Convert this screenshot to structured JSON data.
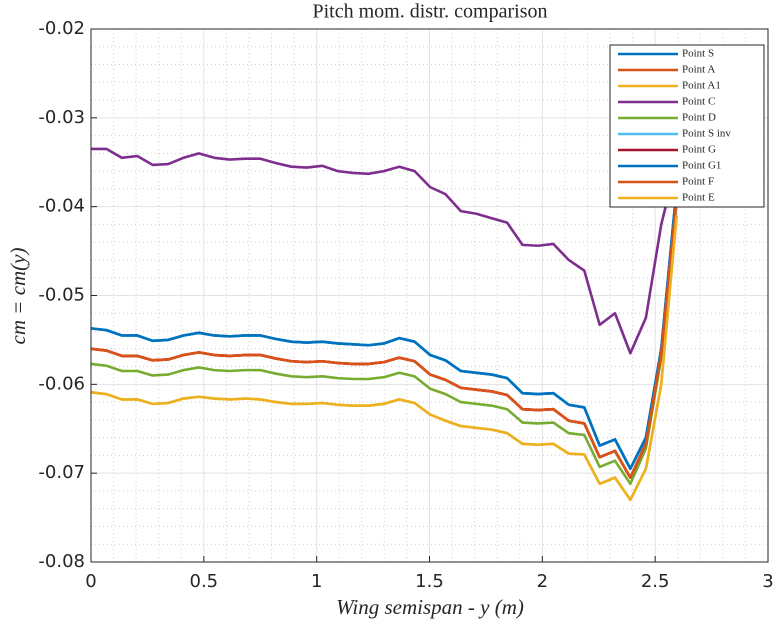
{
  "chart_data": {
    "type": "line",
    "title": "Pitch mom. distr. comparison",
    "xlabel": "Wing semispan - y (m)",
    "ylabel": "cm = cm(y)",
    "x": [
      0,
      0.068,
      0.137,
      0.205,
      0.273,
      0.342,
      0.41,
      0.478,
      0.546,
      0.615,
      0.683,
      0.751,
      0.82,
      0.888,
      0.956,
      1.025,
      1.093,
      1.161,
      1.229,
      1.298,
      1.366,
      1.434,
      1.503,
      1.571,
      1.639,
      1.708,
      1.776,
      1.844,
      1.912,
      1.981,
      2.049,
      2.117,
      2.186,
      2.254,
      2.322,
      2.39,
      2.459,
      2.527,
      2.595
    ],
    "series": [
      {
        "name": "Point S",
        "color": "#0072BD",
        "values": [
          -0.0537,
          -0.0539,
          -0.0545,
          -0.0545,
          -0.0551,
          -0.055,
          -0.0545,
          -0.0542,
          -0.0545,
          -0.0546,
          -0.0545,
          -0.0545,
          -0.0549,
          -0.0552,
          -0.0553,
          -0.0552,
          -0.0554,
          -0.0555,
          -0.0556,
          -0.0554,
          -0.0548,
          -0.0552,
          -0.0567,
          -0.0573,
          -0.0585,
          -0.0587,
          -0.0589,
          -0.0593,
          -0.061,
          -0.0611,
          -0.061,
          -0.0623,
          -0.0626,
          -0.0669,
          -0.0662,
          -0.0695,
          -0.066,
          -0.056,
          -0.038
        ]
      },
      {
        "name": "Point A",
        "color": "#D95319",
        "values": [
          -0.056,
          -0.0562,
          -0.0568,
          -0.0568,
          -0.0573,
          -0.0572,
          -0.0567,
          -0.0564,
          -0.0567,
          -0.0568,
          -0.0567,
          -0.0567,
          -0.0571,
          -0.0574,
          -0.0575,
          -0.0574,
          -0.0576,
          -0.0577,
          -0.0577,
          -0.0575,
          -0.057,
          -0.0574,
          -0.0589,
          -0.0595,
          -0.0604,
          -0.0606,
          -0.0608,
          -0.0612,
          -0.0628,
          -0.0629,
          -0.0628,
          -0.0641,
          -0.0644,
          -0.0682,
          -0.0675,
          -0.0705,
          -0.0667,
          -0.0565,
          -0.039
        ]
      },
      {
        "name": "Point A1",
        "color": "#EDB120",
        "values": [
          -0.0609,
          -0.0611,
          -0.0617,
          -0.0617,
          -0.0622,
          -0.0621,
          -0.0616,
          -0.0614,
          -0.0616,
          -0.0617,
          -0.0616,
          -0.0617,
          -0.062,
          -0.0622,
          -0.0622,
          -0.0621,
          -0.0623,
          -0.0624,
          -0.0624,
          -0.0622,
          -0.0617,
          -0.0621,
          -0.0634,
          -0.0641,
          -0.0647,
          -0.0649,
          -0.0651,
          -0.0655,
          -0.0667,
          -0.0668,
          -0.0667,
          -0.0678,
          -0.0679,
          -0.0712,
          -0.0705,
          -0.073,
          -0.0695,
          -0.06,
          -0.041
        ]
      },
      {
        "name": "Point C",
        "color": "#7E2F8E",
        "values": [
          -0.0335,
          -0.0335,
          -0.0345,
          -0.0343,
          -0.0353,
          -0.0352,
          -0.0345,
          -0.034,
          -0.0345,
          -0.0347,
          -0.0346,
          -0.0346,
          -0.0351,
          -0.0355,
          -0.0356,
          -0.0354,
          -0.036,
          -0.0362,
          -0.0363,
          -0.036,
          -0.0355,
          -0.036,
          -0.0378,
          -0.0386,
          -0.0405,
          -0.0408,
          -0.0413,
          -0.0418,
          -0.0443,
          -0.0444,
          -0.0442,
          -0.046,
          -0.0472,
          -0.0533,
          -0.052,
          -0.0565,
          -0.0525,
          -0.042,
          -0.035
        ]
      },
      {
        "name": "Point D",
        "color": "#77AC30",
        "values": [
          -0.0577,
          -0.0579,
          -0.0585,
          -0.0585,
          -0.059,
          -0.0589,
          -0.0584,
          -0.0581,
          -0.0584,
          -0.0585,
          -0.0584,
          -0.0584,
          -0.0588,
          -0.0591,
          -0.0592,
          -0.0591,
          -0.0593,
          -0.0594,
          -0.0594,
          -0.0592,
          -0.0587,
          -0.0591,
          -0.0605,
          -0.0611,
          -0.062,
          -0.0622,
          -0.0624,
          -0.0628,
          -0.0643,
          -0.0644,
          -0.0643,
          -0.0655,
          -0.0657,
          -0.0693,
          -0.0686,
          -0.0712,
          -0.0672,
          -0.057,
          -0.0395
        ]
      },
      {
        "name": "Point S inv",
        "color": "#4DBEEE",
        "values": [
          -0.0537,
          -0.0539,
          -0.0545,
          -0.0545,
          -0.0551,
          -0.055,
          -0.0545,
          -0.0542,
          -0.0545,
          -0.0546,
          -0.0545,
          -0.0545,
          -0.0549,
          -0.0552,
          -0.0553,
          -0.0552,
          -0.0554,
          -0.0555,
          -0.0556,
          -0.0554,
          -0.0548,
          -0.0552,
          -0.0567,
          -0.0573,
          -0.0585,
          -0.0587,
          -0.0589,
          -0.0593,
          -0.061,
          -0.0611,
          -0.061,
          -0.0623,
          -0.0626,
          -0.0669,
          -0.0662,
          -0.0695,
          -0.066,
          -0.056,
          -0.038
        ]
      },
      {
        "name": "Point G",
        "color": "#A2142F",
        "values": [
          -0.056,
          -0.0562,
          -0.0568,
          -0.0568,
          -0.0573,
          -0.0572,
          -0.0567,
          -0.0564,
          -0.0567,
          -0.0568,
          -0.0567,
          -0.0567,
          -0.0571,
          -0.0574,
          -0.0575,
          -0.0574,
          -0.0576,
          -0.0577,
          -0.0577,
          -0.0575,
          -0.057,
          -0.0574,
          -0.0589,
          -0.0595,
          -0.0604,
          -0.0606,
          -0.0608,
          -0.0612,
          -0.0628,
          -0.0629,
          -0.0628,
          -0.0641,
          -0.0644,
          -0.0682,
          -0.0675,
          -0.0705,
          -0.0667,
          -0.0565,
          -0.039
        ]
      },
      {
        "name": "Point G1",
        "color": "#0072BD",
        "values": [
          -0.0537,
          -0.0539,
          -0.0545,
          -0.0545,
          -0.0551,
          -0.055,
          -0.0545,
          -0.0542,
          -0.0545,
          -0.0546,
          -0.0545,
          -0.0545,
          -0.0549,
          -0.0552,
          -0.0553,
          -0.0552,
          -0.0554,
          -0.0555,
          -0.0556,
          -0.0554,
          -0.0548,
          -0.0552,
          -0.0567,
          -0.0573,
          -0.0585,
          -0.0587,
          -0.0589,
          -0.0593,
          -0.061,
          -0.0611,
          -0.061,
          -0.0623,
          -0.0626,
          -0.0669,
          -0.0662,
          -0.0695,
          -0.066,
          -0.056,
          -0.038
        ]
      },
      {
        "name": "Point F",
        "color": "#D95319",
        "values": [
          -0.056,
          -0.0562,
          -0.0568,
          -0.0568,
          -0.0573,
          -0.0572,
          -0.0567,
          -0.0564,
          -0.0567,
          -0.0568,
          -0.0567,
          -0.0567,
          -0.0571,
          -0.0574,
          -0.0575,
          -0.0574,
          -0.0576,
          -0.0577,
          -0.0577,
          -0.0575,
          -0.057,
          -0.0574,
          -0.0589,
          -0.0595,
          -0.0604,
          -0.0606,
          -0.0608,
          -0.0612,
          -0.0628,
          -0.0629,
          -0.0628,
          -0.0641,
          -0.0644,
          -0.0682,
          -0.0675,
          -0.0705,
          -0.0667,
          -0.0565,
          -0.039
        ]
      },
      {
        "name": "Point E",
        "color": "#EDB120",
        "values": [
          -0.0609,
          -0.0611,
          -0.0617,
          -0.0617,
          -0.0622,
          -0.0621,
          -0.0616,
          -0.0614,
          -0.0616,
          -0.0617,
          -0.0616,
          -0.0617,
          -0.062,
          -0.0622,
          -0.0622,
          -0.0621,
          -0.0623,
          -0.0624,
          -0.0624,
          -0.0622,
          -0.0617,
          -0.0621,
          -0.0634,
          -0.0641,
          -0.0647,
          -0.0649,
          -0.0651,
          -0.0655,
          -0.0667,
          -0.0668,
          -0.0667,
          -0.0678,
          -0.0679,
          -0.0712,
          -0.0705,
          -0.073,
          -0.0695,
          -0.06,
          -0.041
        ]
      }
    ],
    "xlim": [
      0,
      3
    ],
    "xticks": [
      0,
      0.5,
      1,
      1.5,
      2,
      2.5,
      3
    ],
    "ylim": [
      -0.08,
      -0.02
    ],
    "yticks": [
      -0.08,
      -0.07,
      -0.06,
      -0.05,
      -0.04,
      -0.03,
      -0.02
    ],
    "grid": true,
    "minor_grid": true,
    "legend": "upper right"
  }
}
